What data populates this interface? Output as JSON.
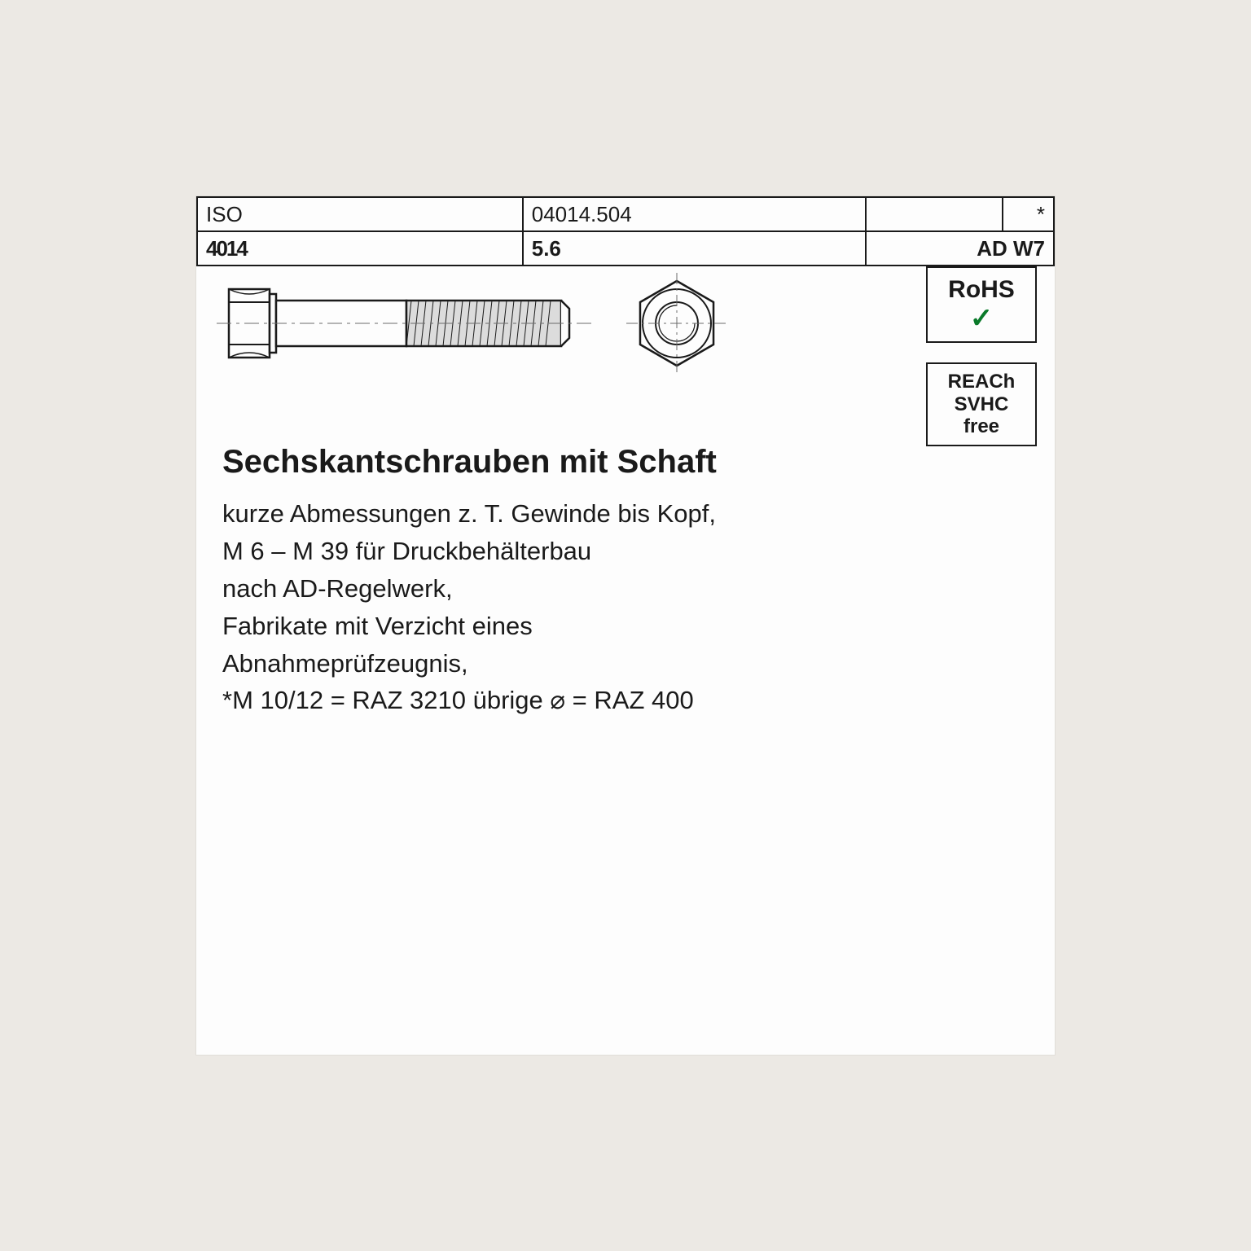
{
  "header": {
    "c1": "ISO",
    "c2": "04014.504",
    "c3": "",
    "c4": "*",
    "big": "4014",
    "grade": "5.6",
    "spec": "AD W7"
  },
  "badges": {
    "rohs": "RoHS",
    "reach_l1": "REACh",
    "reach_l2": "SVHC",
    "reach_l3": "free"
  },
  "title": "Sechskantschrauben mit Schaft",
  "body_lines": [
    "kurze Abmessungen z. T. Gewinde bis Kopf,",
    "M 6 – M 39 für Druckbehälterbau",
    "nach AD-Regelwerk,",
    "Fabrikate mit Verzicht eines",
    "Abnahmeprüfzeugnis,",
    "*M 10/12 = RAZ 3210 übrige ⌀ = RAZ 400"
  ],
  "bolt": {
    "stroke": "#1a1a1a",
    "fill": "#fdfdfd",
    "thread_fill": "#dcdcdc",
    "centerline": "#6a6a6a"
  }
}
